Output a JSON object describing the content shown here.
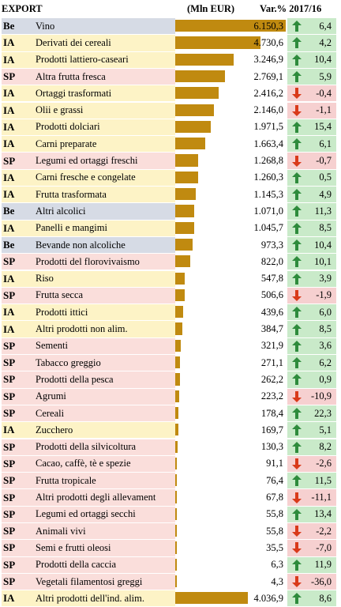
{
  "header": {
    "export_label": "EXPORT",
    "unit_label": "(Mln EUR)",
    "change_label": "Var.% 2017/16"
  },
  "colors": {
    "Be": "#d6dbe5",
    "IA": "#fdf3c6",
    "SP": "#fadedb",
    "bar": "#c08a10",
    "up_arrow": "#2e8b3c",
    "down_arrow": "#d93a1a",
    "up_bg": "#c9eac9",
    "down_bg": "#f6d0d0"
  },
  "chart_data": {
    "type": "bar",
    "xlim": [
      0,
      6150.3
    ],
    "columns": [
      "EXPORT",
      "(Mln EUR)",
      "Var.% 2017/16"
    ],
    "rows": [
      {
        "code": "Be",
        "name": "Vino",
        "value": 6150.3,
        "value_text": "6.150,3",
        "change": 6.4,
        "change_text": "6,4"
      },
      {
        "code": "IA",
        "name": "Derivati dei cereali",
        "value": 4730.6,
        "value_text": "4.730,6",
        "change": 4.2,
        "change_text": "4,2"
      },
      {
        "code": "IA",
        "name": "Prodotti lattiero-caseari",
        "value": 3246.9,
        "value_text": "3.246,9",
        "change": 10.4,
        "change_text": "10,4"
      },
      {
        "code": "SP",
        "name": "Altra frutta fresca",
        "value": 2769.1,
        "value_text": "2.769,1",
        "change": 5.9,
        "change_text": "5,9"
      },
      {
        "code": "IA",
        "name": "Ortaggi trasformati",
        "value": 2416.2,
        "value_text": "2.416,2",
        "change": -0.4,
        "change_text": "-0,4"
      },
      {
        "code": "IA",
        "name": "Olii e grassi",
        "value": 2146.0,
        "value_text": "2.146,0",
        "change": -1.1,
        "change_text": "-1,1"
      },
      {
        "code": "IA",
        "name": "Prodotti dolciari",
        "value": 1971.5,
        "value_text": "1.971,5",
        "change": 15.4,
        "change_text": "15,4"
      },
      {
        "code": "IA",
        "name": "Carni preparate",
        "value": 1663.4,
        "value_text": "1.663,4",
        "change": 6.1,
        "change_text": "6,1"
      },
      {
        "code": "SP",
        "name": "Legumi ed ortaggi freschi",
        "value": 1268.8,
        "value_text": "1.268,8",
        "change": -0.7,
        "change_text": "-0,7"
      },
      {
        "code": "IA",
        "name": "Carni fresche e congelate",
        "value": 1260.3,
        "value_text": "1.260,3",
        "change": 0.5,
        "change_text": "0,5"
      },
      {
        "code": "IA",
        "name": "Frutta trasformata",
        "value": 1145.3,
        "value_text": "1.145,3",
        "change": 4.9,
        "change_text": "4,9"
      },
      {
        "code": "Be",
        "name": "Altri alcolici",
        "value": 1071.0,
        "value_text": "1.071,0",
        "change": 11.3,
        "change_text": "11,3"
      },
      {
        "code": "IA",
        "name": "Panelli e mangimi",
        "value": 1045.7,
        "value_text": "1.045,7",
        "change": 8.5,
        "change_text": "8,5"
      },
      {
        "code": "Be",
        "name": "Bevande non alcoliche",
        "value": 973.3,
        "value_text": "973,3",
        "change": 10.4,
        "change_text": "10,4"
      },
      {
        "code": "SP",
        "name": "Prodotti del florovivaismo",
        "value": 822.0,
        "value_text": "822,0",
        "change": 10.1,
        "change_text": "10,1"
      },
      {
        "code": "IA",
        "name": "Riso",
        "value": 547.8,
        "value_text": "547,8",
        "change": 3.9,
        "change_text": "3,9"
      },
      {
        "code": "SP",
        "name": "Frutta secca",
        "value": 506.6,
        "value_text": "506,6",
        "change": -1.9,
        "change_text": "-1,9"
      },
      {
        "code": "IA",
        "name": "Prodotti ittici",
        "value": 439.6,
        "value_text": "439,6",
        "change": 6.0,
        "change_text": "6,0"
      },
      {
        "code": "IA",
        "name": "Altri prodotti non alim.",
        "value": 384.7,
        "value_text": "384,7",
        "change": 8.5,
        "change_text": "8,5"
      },
      {
        "code": "SP",
        "name": "Sementi",
        "value": 321.9,
        "value_text": "321,9",
        "change": 3.6,
        "change_text": "3,6"
      },
      {
        "code": "SP",
        "name": "Tabacco greggio",
        "value": 271.1,
        "value_text": "271,1",
        "change": 6.2,
        "change_text": "6,2"
      },
      {
        "code": "SP",
        "name": "Prodotti della pesca",
        "value": 262.2,
        "value_text": "262,2",
        "change": 0.9,
        "change_text": "0,9"
      },
      {
        "code": "SP",
        "name": "Agrumi",
        "value": 223.2,
        "value_text": "223,2",
        "change": -10.9,
        "change_text": "-10,9"
      },
      {
        "code": "SP",
        "name": "Cereali",
        "value": 178.4,
        "value_text": "178,4",
        "change": 22.3,
        "change_text": "22,3"
      },
      {
        "code": "IA",
        "name": "Zucchero",
        "value": 169.7,
        "value_text": "169,7",
        "change": 5.1,
        "change_text": "5,1"
      },
      {
        "code": "SP",
        "name": "Prodotti della silvicoltura",
        "value": 130.3,
        "value_text": "130,3",
        "change": 8.2,
        "change_text": "8,2"
      },
      {
        "code": "SP",
        "name": "Cacao, caffè, tè e spezie",
        "value": 91.1,
        "value_text": "91,1",
        "change": -2.6,
        "change_text": "-2,6"
      },
      {
        "code": "SP",
        "name": "Frutta tropicale",
        "value": 76.4,
        "value_text": "76,4",
        "change": 11.5,
        "change_text": "11,5"
      },
      {
        "code": "SP",
        "name": "Altri prodotti degli allevament",
        "value": 67.8,
        "value_text": "67,8",
        "change": -11.1,
        "change_text": "-11,1"
      },
      {
        "code": "SP",
        "name": "Legumi ed ortaggi secchi",
        "value": 55.8,
        "value_text": "55,8",
        "change": 13.4,
        "change_text": "13,4"
      },
      {
        "code": "SP",
        "name": "Animali vivi",
        "value": 55.8,
        "value_text": "55,8",
        "change": -2.2,
        "change_text": "-2,2"
      },
      {
        "code": "SP",
        "name": "Semi e frutti oleosi",
        "value": 35.5,
        "value_text": "35,5",
        "change": -7.0,
        "change_text": "-7,0"
      },
      {
        "code": "SP",
        "name": "Prodotti della caccia",
        "value": 6.3,
        "value_text": "6,3",
        "change": 11.9,
        "change_text": "11,9"
      },
      {
        "code": "SP",
        "name": "Vegetali filamentosi greggi",
        "value": 4.3,
        "value_text": "4,3",
        "change": -36.0,
        "change_text": "-36,0"
      },
      {
        "code": "IA",
        "name": "Altri prodotti dell'ind. alim.",
        "value": 4036.9,
        "value_text": "4.036,9",
        "change": 8.6,
        "change_text": "8,6"
      }
    ]
  }
}
